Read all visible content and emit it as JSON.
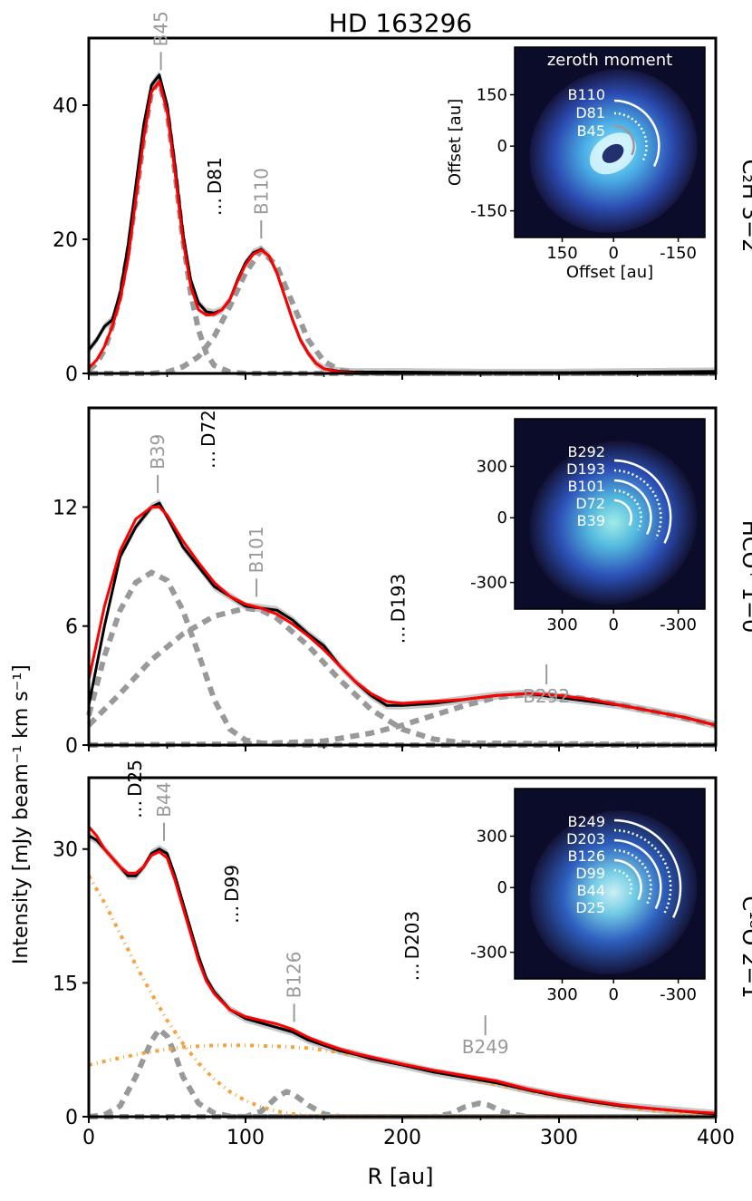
{
  "figure": {
    "title": "HD 163296",
    "ylabel": "Intensity [mJy beam⁻¹ km s⁻¹]",
    "xlabel": "R [au]",
    "xticks": [
      "0",
      "100",
      "200",
      "300",
      "400"
    ]
  },
  "colors": {
    "data": "#000000",
    "model": "#ff0000",
    "component": "#999999",
    "extra": "#f5a340",
    "band": "#c8c8c8",
    "inset_bg": "#0b0b2a"
  },
  "chart_data": [
    {
      "type": "line",
      "title": "C₂H 3−2",
      "xlabel": "R [au]",
      "xlim": [
        0,
        400
      ],
      "ylim": [
        0,
        50
      ],
      "yticks": [
        0,
        20,
        40
      ],
      "series": [
        {
          "name": "data",
          "x": [
            0,
            5,
            10,
            15,
            20,
            25,
            30,
            35,
            40,
            45,
            50,
            55,
            60,
            65,
            70,
            75,
            80,
            85,
            90,
            95,
            100,
            105,
            110,
            115,
            120,
            125,
            130,
            135,
            140,
            145,
            150,
            160,
            170,
            180,
            200,
            250,
            300,
            350,
            400
          ],
          "y": [
            3.5,
            5,
            7,
            8,
            12,
            19,
            28,
            37,
            43,
            44.5,
            40,
            31,
            21,
            14,
            10.5,
            9.2,
            9,
            9.5,
            11,
            14,
            16.5,
            18,
            18.5,
            17.5,
            15,
            11.5,
            8,
            5,
            3,
            1.5,
            0.7,
            0.3,
            0.2,
            0.2,
            0.2,
            0.1,
            0.1,
            0.2,
            0.3
          ]
        },
        {
          "name": "model",
          "x": [
            0,
            5,
            10,
            15,
            20,
            25,
            30,
            35,
            40,
            45,
            50,
            55,
            60,
            65,
            70,
            75,
            80,
            85,
            90,
            95,
            100,
            105,
            110,
            115,
            120,
            125,
            130,
            135,
            140,
            145,
            150,
            160,
            170,
            180,
            200,
            250,
            300,
            350,
            400
          ],
          "y": [
            0.8,
            2,
            4,
            7,
            11,
            17,
            26,
            35,
            42,
            43.5,
            39,
            30,
            20,
            13,
            9.5,
            8.7,
            8.8,
            9.5,
            11,
            13.8,
            16.2,
            17.8,
            18.4,
            17.5,
            15,
            11.5,
            8,
            5,
            3,
            1.5,
            0.7,
            0.2,
            0.05,
            0,
            0,
            0,
            0,
            0,
            0
          ]
        },
        {
          "name": "B45",
          "x": [
            0,
            5,
            10,
            15,
            20,
            25,
            30,
            35,
            40,
            45,
            50,
            55,
            60,
            65,
            70,
            75,
            80,
            90,
            100,
            200,
            400
          ],
          "y": [
            0.5,
            1.5,
            3.5,
            7,
            11.5,
            18,
            26,
            35,
            42,
            43.5,
            39,
            30,
            20,
            12,
            6.5,
            3,
            1.2,
            0.2,
            0,
            0,
            0
          ]
        },
        {
          "name": "B110",
          "x": [
            0,
            40,
            50,
            60,
            70,
            80,
            90,
            100,
            110,
            120,
            130,
            140,
            150,
            160,
            170,
            200,
            400
          ],
          "y": [
            0,
            0,
            0.2,
            1,
            2.5,
            5.5,
            10,
            15,
            18.4,
            16,
            10.5,
            5,
            1.8,
            0.5,
            0.1,
            0,
            0
          ]
        }
      ],
      "annotations": [
        {
          "label": "B45",
          "x": 46,
          "kind": "bright"
        },
        {
          "label": "D81",
          "x": 81,
          "kind": "dark"
        },
        {
          "label": "B110",
          "x": 110,
          "kind": "bright"
        }
      ],
      "inset": {
        "title": "zeroth moment",
        "xlabel": "Offset [au]",
        "ylabel": "Offset [au]",
        "ticks": [
          "150",
          "0",
          "-150"
        ],
        "labels": [
          "B110",
          "D81",
          "B45"
        ]
      }
    },
    {
      "type": "line",
      "title": "HCO⁺ 1−0",
      "xlabel": "R [au]",
      "xlim": [
        0,
        400
      ],
      "ylim": [
        0,
        17
      ],
      "yticks": [
        0,
        6,
        12
      ],
      "series": [
        {
          "name": "data",
          "x": [
            0,
            10,
            20,
            30,
            40,
            45,
            50,
            60,
            70,
            80,
            90,
            100,
            110,
            120,
            130,
            140,
            150,
            160,
            170,
            180,
            190,
            200,
            220,
            240,
            260,
            280,
            300,
            320,
            340,
            360,
            380,
            400
          ],
          "y": [
            2,
            6,
            9.5,
            11,
            12,
            12.2,
            11.5,
            10,
            9,
            8,
            7.5,
            7,
            6.9,
            6.8,
            6.3,
            5.6,
            5,
            4,
            3.2,
            2.5,
            2,
            2,
            2.1,
            2.3,
            2.5,
            2.6,
            2.4,
            2.2,
            2,
            1.7,
            1.4,
            1
          ]
        },
        {
          "name": "model",
          "x": [
            0,
            10,
            20,
            30,
            40,
            45,
            50,
            60,
            70,
            80,
            90,
            100,
            110,
            120,
            130,
            140,
            150,
            160,
            170,
            180,
            190,
            200,
            220,
            240,
            260,
            280,
            300,
            320,
            340,
            360,
            380,
            400
          ],
          "y": [
            3.3,
            7,
            9.8,
            11.4,
            12,
            12,
            11.6,
            10.3,
            9.2,
            8.2,
            7.5,
            7.1,
            6.9,
            6.6,
            6.1,
            5.5,
            4.8,
            4,
            3.2,
            2.6,
            2.2,
            2.1,
            2.2,
            2.3,
            2.5,
            2.6,
            2.5,
            2.3,
            2,
            1.7,
            1.4,
            1
          ]
        },
        {
          "name": "B39",
          "x": [
            0,
            10,
            20,
            30,
            40,
            50,
            60,
            70,
            80,
            90,
            100,
            110,
            120,
            140,
            200,
            400
          ],
          "y": [
            1.5,
            4.5,
            6.8,
            8.2,
            8.7,
            8.3,
            6.8,
            4.6,
            2.3,
            0.8,
            0.25,
            0.1,
            0.05,
            0,
            0,
            0
          ]
        },
        {
          "name": "B101",
          "x": [
            0,
            20,
            40,
            60,
            80,
            100,
            110,
            120,
            140,
            160,
            180,
            200,
            220,
            240,
            400
          ],
          "y": [
            1,
            2.6,
            4.3,
            5.6,
            6.5,
            6.9,
            6.8,
            6.4,
            5,
            3.3,
            1.8,
            0.8,
            0.3,
            0.1,
            0
          ]
        },
        {
          "name": "B292",
          "x": [
            0,
            100,
            150,
            180,
            200,
            220,
            240,
            260,
            280,
            300,
            320,
            340,
            360,
            380,
            400
          ],
          "y": [
            0,
            0.05,
            0.2,
            0.6,
            1,
            1.5,
            2,
            2.4,
            2.55,
            2.5,
            2.3,
            2,
            1.7,
            1.35,
            1
          ]
        }
      ],
      "annotations": [
        {
          "label": "B39",
          "x": 44,
          "kind": "bright"
        },
        {
          "label": "D72",
          "x": 77,
          "kind": "dark"
        },
        {
          "label": "B101",
          "x": 107,
          "kind": "bright"
        },
        {
          "label": "D193",
          "x": 198,
          "kind": "dark"
        },
        {
          "label": "B292",
          "x": 292,
          "kind": "bright-below"
        }
      ],
      "inset": {
        "title": "",
        "xlabel": "",
        "ylabel": "",
        "ticks": [
          "300",
          "0",
          "-300"
        ],
        "labels": [
          "B292",
          "D193",
          "B101",
          "D72",
          "B39"
        ]
      }
    },
    {
      "type": "line",
      "title": "C¹⁸O 2−1",
      "xlabel": "R [au]",
      "xlim": [
        0,
        400
      ],
      "ylim": [
        0,
        38
      ],
      "yticks": [
        0,
        15,
        30
      ],
      "series": [
        {
          "name": "data",
          "x": [
            0,
            5,
            10,
            15,
            20,
            25,
            30,
            35,
            40,
            45,
            50,
            55,
            60,
            65,
            70,
            75,
            80,
            90,
            100,
            110,
            120,
            130,
            140,
            150,
            160,
            170,
            180,
            200,
            220,
            240,
            260,
            280,
            300,
            320,
            340,
            360,
            380,
            400
          ],
          "y": [
            31.5,
            31,
            30,
            29,
            28,
            27,
            27,
            28,
            29.5,
            30,
            29.5,
            27,
            24,
            21,
            18,
            15.5,
            14,
            12,
            11,
            10.5,
            10,
            9.5,
            8.6,
            8,
            7.4,
            7,
            6.5,
            5.8,
            5,
            4.4,
            3.8,
            3,
            2.3,
            1.7,
            1.2,
            0.9,
            0.6,
            0.3
          ]
        },
        {
          "name": "model",
          "x": [
            0,
            5,
            10,
            15,
            20,
            25,
            30,
            35,
            40,
            45,
            50,
            55,
            60,
            65,
            70,
            75,
            80,
            90,
            100,
            110,
            120,
            130,
            140,
            150,
            160,
            170,
            180,
            200,
            220,
            240,
            260,
            280,
            300,
            320,
            340,
            360,
            380,
            400
          ],
          "y": [
            32.5,
            31.5,
            30,
            29,
            28,
            27.3,
            27.3,
            28,
            29.3,
            29.7,
            29,
            26.5,
            23.5,
            20.5,
            17.5,
            15.2,
            13.8,
            12,
            11.2,
            10.8,
            10.4,
            9.8,
            8.9,
            8.2,
            7.6,
            7.1,
            6.7,
            5.9,
            5.2,
            4.6,
            4,
            3.1,
            2.4,
            1.8,
            1.3,
            0.9,
            0.6,
            0.4
          ]
        },
        {
          "name": "B44",
          "x": [
            0,
            10,
            20,
            30,
            40,
            45,
            50,
            55,
            60,
            70,
            80,
            90,
            100,
            400
          ],
          "y": [
            0,
            0.2,
            1.2,
            4.5,
            8.5,
            9.8,
            9,
            7,
            4.5,
            1.5,
            0.4,
            0.05,
            0,
            0
          ]
        },
        {
          "name": "B126",
          "x": [
            0,
            100,
            110,
            120,
            126,
            130,
            140,
            150,
            160,
            400
          ],
          "y": [
            0,
            0,
            0.6,
            2.2,
            2.8,
            2.6,
            1.3,
            0.3,
            0,
            0
          ]
        },
        {
          "name": "B249",
          "x": [
            0,
            220,
            230,
            240,
            249,
            255,
            265,
            280,
            400
          ],
          "y": [
            0,
            0,
            0.3,
            1.1,
            1.5,
            1.3,
            0.5,
            0,
            0
          ]
        },
        {
          "name": "extra1",
          "x": [
            0,
            10,
            20,
            30,
            40,
            50,
            60,
            70,
            80,
            90,
            100,
            110,
            120,
            130,
            140,
            150,
            160,
            400
          ],
          "y": [
            27,
            24,
            20.5,
            17,
            13.8,
            10.8,
            8.2,
            6,
            4.2,
            2.8,
            1.8,
            1.1,
            0.6,
            0.3,
            0.1,
            0.05,
            0,
            0
          ]
        },
        {
          "name": "extra2",
          "x": [
            0,
            20,
            40,
            60,
            80,
            100,
            120,
            140,
            160,
            180,
            200,
            220,
            240,
            260,
            280,
            300,
            320,
            340,
            360,
            380,
            400
          ],
          "y": [
            5.8,
            6.6,
            7.3,
            7.8,
            8,
            8,
            7.9,
            7.7,
            7.2,
            6.6,
            5.9,
            5.1,
            4.4,
            3.6,
            2.9,
            2.2,
            1.6,
            1.1,
            0.7,
            0.4,
            0.2
          ]
        }
      ],
      "annotations": [
        {
          "label": "D25",
          "x": 30,
          "kind": "dark"
        },
        {
          "label": "B44",
          "x": 48,
          "kind": "bright"
        },
        {
          "label": "D99",
          "x": 92,
          "kind": "dark"
        },
        {
          "label": "B126",
          "x": 131,
          "kind": "bright"
        },
        {
          "label": "D203",
          "x": 207,
          "kind": "dark"
        },
        {
          "label": "B249",
          "x": 253,
          "kind": "bright-below"
        }
      ],
      "inset": {
        "title": "",
        "xlabel": "",
        "ylabel": "",
        "ticks": [
          "300",
          "0",
          "-300"
        ],
        "labels": [
          "B249",
          "D203",
          "B126",
          "D99",
          "B44",
          "D25"
        ]
      }
    }
  ]
}
